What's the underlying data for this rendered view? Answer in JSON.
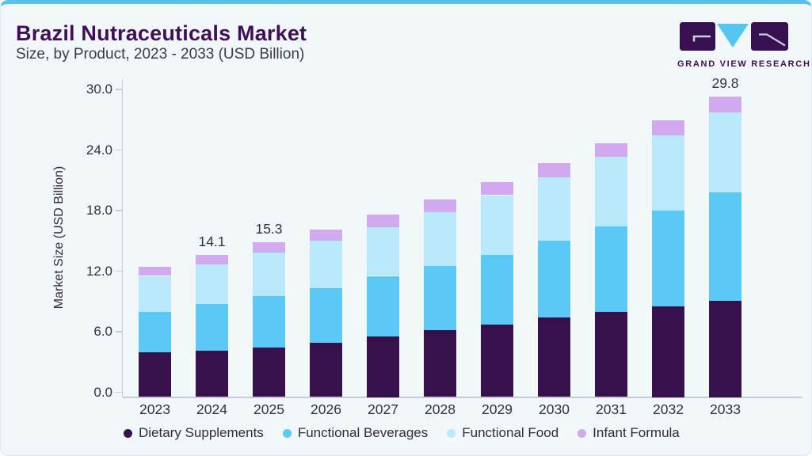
{
  "header": {
    "title": "Brazil Nutraceuticals Market",
    "subtitle": "Size, by Product, 2023 - 2033 (USD Billion)",
    "brand_name": "GRAND VIEW RESEARCH"
  },
  "colors": {
    "accent_top_bar": "#5ac3ec",
    "card_background": "#f2f7fa",
    "title_purple": "#3f1059",
    "axis_line": "#c7ccd4",
    "axis_text": "#32323c",
    "logo_block_purple": "#371052",
    "logo_triangle_cyan": "#52c8f0"
  },
  "chart_data": {
    "type": "bar",
    "stacked": true,
    "title": "Brazil Nutraceuticals Market Size, by Product, 2023 - 2033 (USD Billion)",
    "xlabel": "",
    "ylabel": "Market Size (USD Billion)",
    "ylim": [
      0,
      30
    ],
    "yticks": [
      0,
      6,
      12,
      18,
      24,
      30
    ],
    "ytick_labels": [
      "0.0",
      "6.0",
      "12.0",
      "18.0",
      "24.0",
      "30.0"
    ],
    "grid": false,
    "legend_position": "bottom",
    "categories": [
      "2023",
      "2024",
      "2025",
      "2026",
      "2027",
      "2028",
      "2029",
      "2030",
      "2031",
      "2032",
      "2033"
    ],
    "series": [
      {
        "name": "Dietary Supplements",
        "color": "#35114d",
        "values": [
          4.4,
          4.6,
          4.9,
          5.4,
          6.0,
          6.6,
          7.2,
          7.9,
          8.4,
          9.0,
          9.5
        ]
      },
      {
        "name": "Functional Beverages",
        "color": "#5bc9f5",
        "values": [
          4.0,
          4.6,
          5.1,
          5.4,
          6.0,
          6.4,
          6.9,
          7.6,
          8.5,
          9.5,
          10.8
        ]
      },
      {
        "name": "Functional Food",
        "color": "#b9e8fa",
        "values": [
          3.6,
          3.9,
          4.3,
          4.7,
          4.8,
          5.3,
          5.9,
          6.3,
          6.9,
          7.4,
          7.9
        ]
      },
      {
        "name": "Infant Formula",
        "color": "#d0a9ee",
        "values": [
          0.9,
          1.0,
          1.0,
          1.1,
          1.3,
          1.3,
          1.3,
          1.4,
          1.3,
          1.5,
          1.6
        ]
      }
    ],
    "bar_total_labels": [
      "",
      "14.1",
      "15.3",
      "",
      "",
      "",
      "",
      "",
      "",
      "",
      "29.8"
    ]
  }
}
